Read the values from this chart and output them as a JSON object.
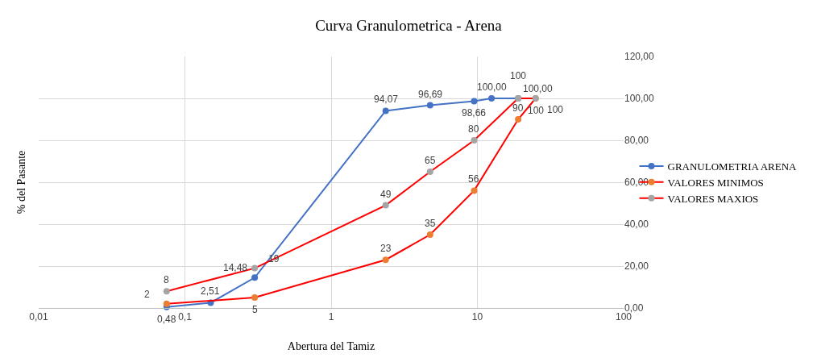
{
  "chart_data": {
    "type": "line",
    "title": "Curva Granulometrica - Arena",
    "xlabel": "Abertura del Tamiz",
    "ylabel": "% del Pasante",
    "log": "x",
    "grid": true,
    "legend": "right",
    "marker": "circle",
    "line_style": "solid",
    "xlim": [
      0.01,
      100
    ],
    "xticks": [
      {
        "value": 0.01,
        "label": "0,01"
      },
      {
        "value": 0.1,
        "label": "0,1"
      },
      1,
      10,
      100
    ],
    "ylim": [
      0,
      120
    ],
    "yticks": [
      {
        "value": 0,
        "label": "0,00"
      },
      {
        "value": 20,
        "label": "20,00"
      },
      {
        "value": 40,
        "label": "40,00"
      },
      {
        "value": 60,
        "label": "60,00"
      },
      {
        "value": 80,
        "label": "80,00"
      },
      {
        "value": 100,
        "label": "100,00"
      },
      {
        "value": 120,
        "label": "120,00"
      }
    ],
    "series": [
      {
        "name": "GRANULOMETRIA ARENA",
        "color": "#4472c4",
        "colors": [
          "#4472c4",
          "#4472c4",
          "#4472c4",
          "#4472c4",
          "#4472c4",
          "#4472c4",
          "#4472c4",
          "#4472c4"
        ],
        "x": [
          0.075,
          0.15,
          0.3,
          2.36,
          4.75,
          9.5,
          12.5,
          19
        ],
        "values": [
          0.48,
          2.51,
          14.48,
          94.07,
          96.69,
          98.66,
          100,
          100
        ],
        "value_labels": [
          "0,48",
          "2,51",
          "14,48",
          "94,07",
          "96,69",
          "98,66",
          "100,00",
          "100,00"
        ]
      },
      {
        "name": "VALORES MINIMOS",
        "color": "#ff0000",
        "colors": [
          "#ed7d31",
          "#ed7d31",
          "#ed7d31",
          "#ed7d31",
          "#ed7d31",
          "#ed7d31",
          "#ed7d31"
        ],
        "x": [
          0.075,
          0.3,
          2.36,
          4.75,
          9.5,
          19,
          25
        ],
        "values": [
          2,
          5,
          23,
          35,
          56,
          90,
          100
        ],
        "value_labels": [
          "2",
          "5",
          "23",
          "35",
          "56",
          "90",
          "100"
        ]
      },
      {
        "name": "VALORES MAXIOS",
        "color": "#ff0000",
        "colors": [
          "#a5a5a5",
          "#a5a5a5",
          "#a5a5a5",
          "#a5a5a5",
          "#a5a5a5",
          "#a5a5a5",
          "#a5a5a5"
        ],
        "x": [
          0.075,
          0.3,
          2.36,
          4.75,
          9.5,
          19,
          25
        ],
        "values": [
          8,
          19,
          49,
          65,
          80,
          100,
          100
        ],
        "value_labels": [
          "8",
          "19",
          "49",
          "65",
          "80",
          "100",
          "100"
        ]
      }
    ]
  }
}
